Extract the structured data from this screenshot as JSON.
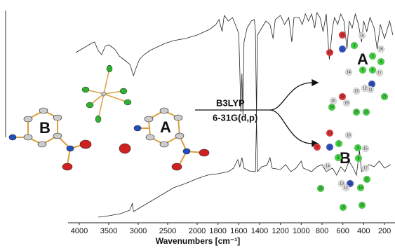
{
  "chart_data": {
    "type": "line",
    "xlabel": "Wavenumbers [cm⁻¹]",
    "xlim": [
      4190,
      100
    ],
    "xticks": [
      4000,
      3500,
      3000,
      2500,
      2000,
      1800,
      1600,
      1400,
      1200,
      1000,
      800,
      600,
      400,
      200
    ],
    "ylim": [
      0,
      310
    ],
    "series": [
      {
        "color": "#222222",
        "x": [
          4060,
          3917,
          3800,
          3740,
          3680,
          3620,
          3560,
          3500,
          3400,
          3322,
          3200,
          3140,
          3080,
          3040,
          2980,
          2900,
          2800,
          2700,
          2548,
          2400,
          2200,
          2000,
          1940,
          1880,
          1820,
          1790,
          1760,
          1740,
          1700,
          1660,
          1620,
          1600,
          1590,
          1580,
          1570,
          1560,
          1550,
          1520,
          1480,
          1450,
          1440,
          1430,
          1420,
          1380,
          1340,
          1300,
          1270,
          1250,
          1200,
          1160,
          1120,
          1090,
          1070,
          1020,
          990,
          960,
          930,
          900,
          870,
          850,
          820,
          790,
          760,
          730,
          700,
          680,
          650,
          620,
          590,
          560,
          540,
          510,
          480,
          450,
          420,
          400,
          370,
          340,
          300,
          270,
          240,
          200,
          150,
          120
        ],
        "values": [
          245,
          252,
          258,
          260,
          248,
          242,
          254,
          256,
          250,
          240,
          232,
          228,
          212,
          222,
          235,
          242,
          248,
          252,
          258,
          262,
          265,
          270,
          274,
          278,
          285,
          292,
          275,
          298,
          290,
          295,
          280,
          272,
          220,
          160,
          215,
          155,
          260,
          280,
          290,
          292,
          275,
          155,
          270,
          280,
          290,
          285,
          265,
          292,
          298,
          285,
          295,
          260,
          295,
          295,
          285,
          300,
          290,
          300,
          280,
          302,
          295,
          275,
          300,
          235,
          280,
          295,
          285,
          300,
          290,
          250,
          290,
          280,
          300,
          285,
          260,
          290,
          275,
          295,
          280,
          250,
          285,
          265,
          290,
          270
        ]
      },
      {
        "color": "#222222",
        "x": [
          3680,
          3500,
          3300,
          3140,
          3100,
          3080,
          3000,
          2800,
          2600,
          2400,
          2200,
          2000,
          1900,
          1800,
          1700,
          1650,
          1610,
          1590,
          1570,
          1550,
          1500,
          1440,
          1430,
          1420,
          1380,
          1330,
          1300,
          1280,
          1200,
          1150,
          1100,
          1050,
          1000,
          980,
          900,
          850,
          800,
          760,
          700,
          660,
          620,
          580,
          540,
          500,
          470,
          440,
          420,
          380,
          350,
          300,
          250,
          200,
          140
        ],
        "values": [
          10,
          12,
          15,
          20,
          30,
          18,
          22,
          32,
          42,
          52,
          58,
          65,
          70,
          72,
          75,
          80,
          92,
          82,
          95,
          80,
          76,
          75,
          150,
          75,
          82,
          84,
          95,
          80,
          78,
          85,
          75,
          80,
          90,
          80,
          75,
          82,
          85,
          75,
          80,
          70,
          82,
          75,
          90,
          80,
          70,
          105,
          75,
          80,
          85,
          82,
          90,
          80,
          85
        ]
      }
    ],
    "annotations": {
      "method": "B3LYP",
      "basis": "6-31G(d,p)",
      "crystal_labels": [
        "B",
        "A"
      ],
      "computed_labels": [
        "A",
        "B"
      ],
      "atoms_A": [
        "16",
        "15",
        "10",
        "1",
        "2",
        "26",
        "3",
        "4",
        "14",
        "5",
        "6",
        "17",
        "22",
        "12",
        "11",
        "13",
        "20",
        "18",
        "19",
        "21",
        "24",
        "25",
        "23"
      ],
      "atoms_B": [
        "16",
        "10",
        "9",
        "1",
        "2",
        "3",
        "15",
        "5",
        "6",
        "14",
        "17",
        "21",
        "13",
        "11",
        "12",
        "18",
        "22",
        "20",
        "19"
      ]
    }
  }
}
